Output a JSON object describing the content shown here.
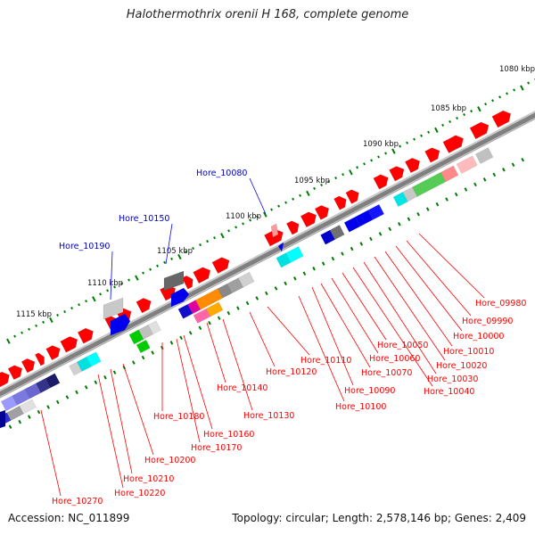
{
  "title": "Halothermothrix orenii H 168, complete genome",
  "accession": "Accession: NC_011899",
  "summary": "Topology: circular; Length: 2,578,146 bp; Genes: 2,409",
  "colors": {
    "forward_gene": "#ff0000",
    "blue_feature": "#0000ff",
    "label_red": "#ff0000",
    "label_blue": "#0000cc",
    "tick": "#007a00",
    "backbone": "#808080"
  },
  "scale_labels": [
    "1080 kbp",
    "1085 kbp",
    "1090 kbp",
    "1095 kbp",
    "1100 kbp",
    "1105 kbp",
    "1110 kbp",
    "1115 kbp"
  ],
  "gene_labels_red": [
    "Hore_09980",
    "Hore_09990",
    "Hore_10000",
    "Hore_10010",
    "Hore_10020",
    "Hore_10030",
    "Hore_10040",
    "Hore_10050",
    "Hore_10060",
    "Hore_10070",
    "Hore_10090",
    "Hore_10100",
    "Hore_10110",
    "Hore_10120",
    "Hore_10130",
    "Hore_10140",
    "Hore_10160",
    "Hore_10170",
    "Hore_10180",
    "Hore_10200",
    "Hore_10210",
    "Hore_10220",
    "Hore_10270"
  ],
  "gene_labels_blue": [
    "Hore_10080",
    "Hore_10150",
    "Hore_10190"
  ]
}
